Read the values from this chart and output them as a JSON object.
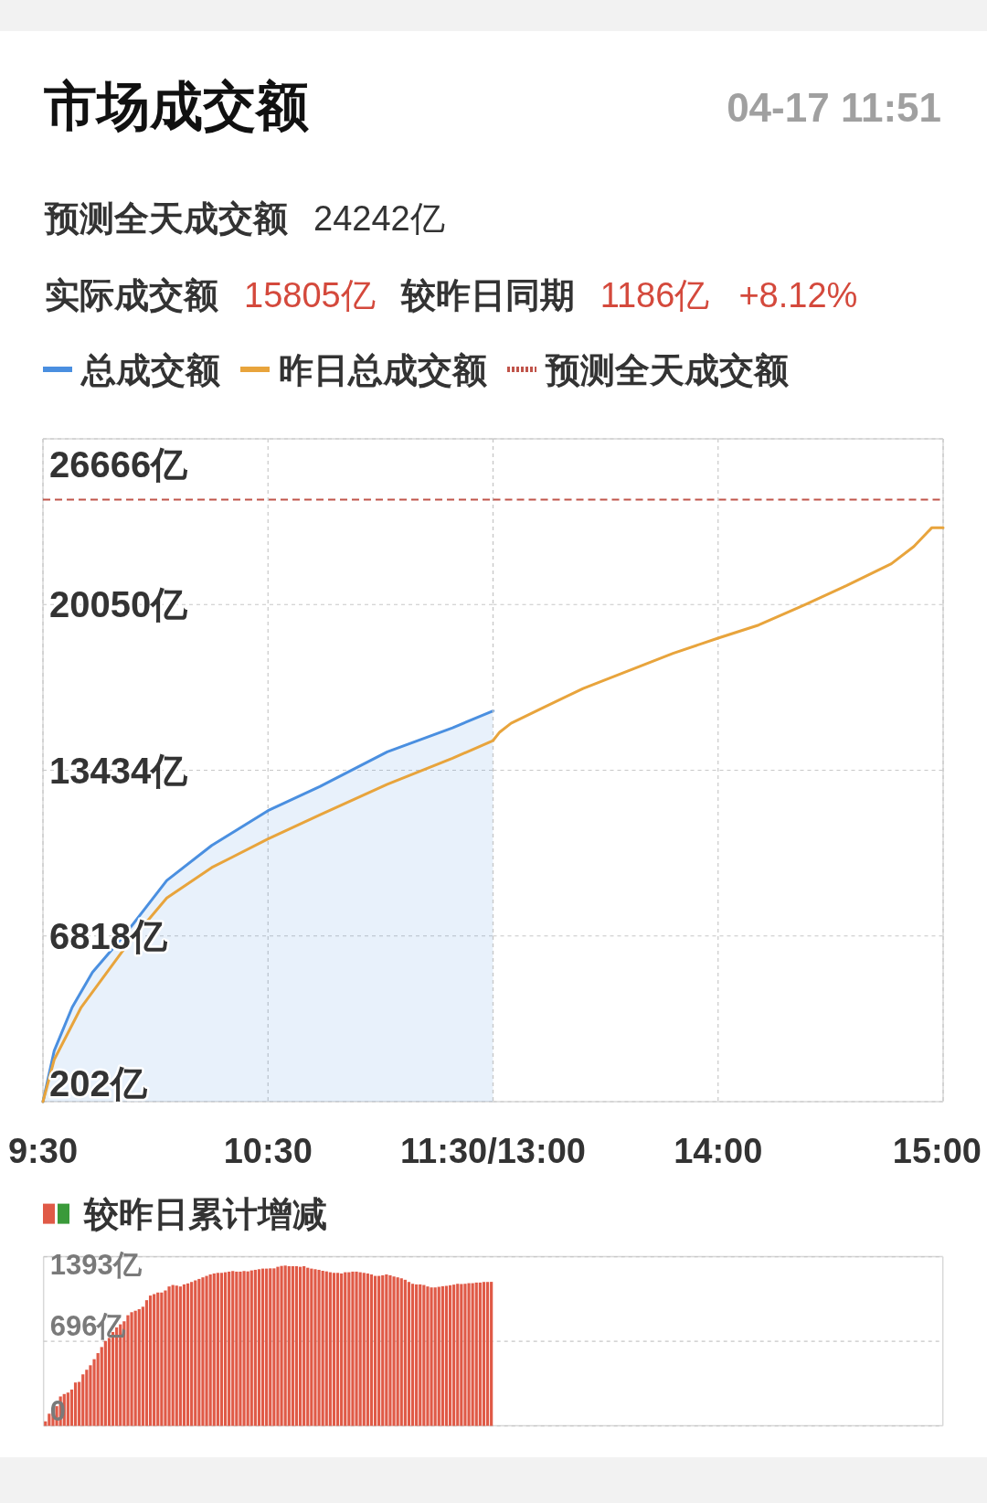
{
  "chart_data": [
    {
      "type": "line",
      "title": "市场成交额",
      "annotations": [
        "预测全天成交额",
        "24242亿",
        "实际成交额",
        "15805亿",
        "较昨日同期",
        "1186亿",
        "+8.12%"
      ],
      "xlim": [
        9.5,
        11.5
      ],
      "xticks": [
        {
          "value": 9.5,
          "label": "9:30"
        },
        {
          "value": 10.5,
          "label": "10:30"
        },
        {
          "value": 11.5,
          "label": "11:30/13:00"
        }
      ],
      "ylim": [
        202,
        26666
      ],
      "yticks": [
        {
          "value": 202,
          "label": "202亿"
        },
        {
          "value": 6818,
          "label": "6818亿"
        },
        {
          "value": 13434,
          "label": "13434亿"
        },
        {
          "value": 20050,
          "label": "20050亿"
        },
        {
          "value": 26666,
          "label": "26666亿"
        }
      ],
      "grid": true,
      "legend": "top",
      "series": [
        {
          "name": "总成交额",
          "type": "area",
          "color": "#4a8fe0",
          "x": [
            9.5,
            9.55,
            9.63,
            9.72,
            9.87,
            10.05,
            10.25,
            10.5,
            10.73,
            11.03,
            11.32,
            11.5
          ],
          "values": [
            202,
            2230,
            3970,
            5370,
            6940,
            9030,
            10430,
            11820,
            12780,
            14170,
            15130,
            15805
          ]
        },
        {
          "name": "昨日总成交额",
          "color": "#e8a43c",
          "x": [
            9.5,
            9.55,
            9.67,
            9.87,
            10.05,
            10.25,
            10.5,
            10.73,
            11.03,
            11.32,
            11.5
          ],
          "values": [
            202,
            1880,
            3970,
            6410,
            8330,
            9550,
            10690,
            11650,
            12870,
            13910,
            14619
          ]
        }
      ],
      "ref_lines": [
        {
          "axis": "y",
          "value": 24242,
          "label": "预测全天成交额",
          "color": "#c0544a",
          "line_style": "dashed"
        }
      ]
    },
    {
      "type": "line",
      "subtitle": "04-17 11:51",
      "tick_labels": "x",
      "xlim": [
        13,
        15
      ],
      "xticks": [
        {
          "value": 13,
          "label": null
        },
        {
          "value": 14,
          "label": "14:00"
        },
        {
          "value": 15,
          "label": "15:00"
        }
      ],
      "ylim": [
        202,
        26666
      ],
      "yticks": [
        202,
        6818,
        13434,
        20050,
        26666
      ],
      "grid": true,
      "series": [
        {
          "color": "#e8a43c",
          "x": [
            13,
            13.03,
            13.08,
            13.22,
            13.4,
            13.6,
            13.8,
            14,
            14.18,
            14.38,
            14.57,
            14.77,
            14.87,
            14.95,
            15
          ],
          "values": [
            14619,
            14960,
            15310,
            15920,
            16700,
            17400,
            18100,
            18710,
            19230,
            20020,
            20800,
            21680,
            22370,
            23120,
            23120
          ]
        }
      ],
      "ref_lines": [
        {
          "axis": "y",
          "value": 24242,
          "color": "#c0544a",
          "line_style": "dashed"
        }
      ]
    },
    {
      "type": "bar",
      "title": "较昨日累计增减",
      "color": "#e05a47",
      "ylim": [
        0,
        1393
      ],
      "yticks": [
        0,
        {
          "value": 696,
          "label": "696亿"
        },
        {
          "value": 1393,
          "label": "1393亿"
        }
      ],
      "grid": "y",
      "tick_labels": "y",
      "categories": [
        null,
        null,
        null,
        null,
        null,
        null,
        null,
        null,
        null,
        null,
        null,
        null,
        null,
        null,
        null,
        null,
        null,
        null,
        null,
        null,
        null,
        null,
        null,
        null,
        null,
        null,
        null,
        null,
        null,
        null,
        null,
        null,
        null,
        null,
        null,
        null,
        null,
        null,
        null,
        null,
        null,
        null,
        null,
        null,
        null,
        null,
        null,
        null,
        null,
        null,
        null,
        null,
        null,
        null,
        null,
        null,
        null,
        null,
        null,
        null,
        null,
        null,
        null,
        null,
        null,
        null,
        null,
        null,
        null,
        null,
        null,
        null,
        null,
        null,
        null,
        null,
        null,
        null,
        null,
        null,
        null,
        null,
        null,
        null,
        null,
        null,
        null,
        null,
        null,
        null,
        null,
        null,
        null,
        null,
        null,
        null,
        null,
        null,
        null,
        null,
        null,
        null,
        null,
        null,
        null,
        null,
        null,
        null,
        null,
        null,
        null,
        null,
        null,
        null,
        null,
        null,
        null,
        null,
        null,
        null,
        null,
        null,
        null,
        null,
        null,
        null,
        null,
        null,
        null,
        null,
        null,
        null,
        null,
        null,
        null,
        null,
        null,
        null,
        null,
        null,
        null,
        null,
        null,
        null,
        null,
        null,
        null,
        null,
        null,
        null,
        null,
        null,
        null,
        null,
        null,
        null,
        null,
        null,
        null,
        null,
        null,
        null,
        null,
        null,
        null,
        null,
        null,
        null,
        null,
        null,
        null,
        null,
        null,
        null,
        null,
        null,
        null,
        null,
        null,
        null,
        null,
        null,
        null,
        null,
        null,
        null,
        null,
        null,
        null,
        null,
        null,
        null,
        null,
        null,
        null,
        null,
        null,
        null,
        null,
        null,
        null,
        null,
        null,
        null,
        null,
        null,
        null,
        null,
        null,
        null,
        null,
        null,
        null,
        null,
        null,
        null,
        null,
        null,
        null,
        null,
        null,
        null,
        null,
        null,
        null,
        null,
        null,
        null,
        null,
        null,
        null,
        null,
        null,
        null,
        null,
        null,
        null,
        null,
        null,
        null
      ],
      "values": [
        37,
        100,
        137,
        162,
        242,
        262,
        274,
        299,
        357,
        362,
        424,
        462,
        499,
        549,
        599,
        649,
        699,
        724,
        773,
        811,
        836,
        861,
        911,
        936,
        948,
        961,
        981,
        1035,
        1073,
        1085,
        1098,
        1098,
        1115,
        1148,
        1160,
        1155,
        1148,
        1165,
        1173,
        1185,
        1198,
        1210,
        1223,
        1235,
        1247,
        1255,
        1260,
        1260,
        1265,
        1270,
        1275,
        1270,
        1270,
        1275,
        1272,
        1280,
        1285,
        1290,
        1295,
        1295,
        1297,
        1297,
        1310,
        1317,
        1320,
        1315,
        1315,
        1315,
        1310,
        1315,
        1302,
        1295,
        1290,
        1285,
        1277,
        1272,
        1265,
        1260,
        1260,
        1255,
        1265,
        1265,
        1270,
        1270,
        1265,
        1260,
        1255,
        1247,
        1235,
        1235,
        1240,
        1247,
        1240,
        1230,
        1223,
        1215,
        1203,
        1185,
        1170,
        1165,
        1165,
        1160,
        1148,
        1140,
        1140,
        1145,
        1150,
        1153,
        1158,
        1163,
        1170,
        1168,
        1170,
        1175,
        1175,
        1180,
        1180,
        1185,
        1185,
        1186,
        null,
        null,
        null,
        null,
        null,
        null,
        null,
        null,
        null,
        null,
        null,
        null,
        null,
        null,
        null,
        null,
        null,
        null,
        null,
        null,
        null,
        null,
        null,
        null,
        null,
        null,
        null,
        null,
        null,
        null,
        null,
        null,
        null,
        null,
        null,
        null,
        null,
        null,
        null,
        null,
        null,
        null,
        null,
        null,
        null,
        null,
        null,
        null,
        null,
        null,
        null,
        null,
        null,
        null,
        null,
        null,
        null,
        null,
        null,
        null,
        null,
        null,
        null,
        null,
        null,
        null,
        null,
        null,
        null,
        null,
        null,
        null,
        null,
        null,
        null,
        null,
        null,
        null,
        null,
        null,
        null,
        null,
        null,
        null,
        null,
        null,
        null,
        null,
        null,
        null,
        null,
        null,
        null,
        null,
        null,
        null,
        null,
        null,
        null,
        null,
        null,
        null,
        null,
        null,
        null,
        null,
        null,
        null,
        null,
        null,
        null,
        null,
        null,
        null,
        null,
        null,
        null,
        null,
        null,
        null
      ]
    }
  ]
}
